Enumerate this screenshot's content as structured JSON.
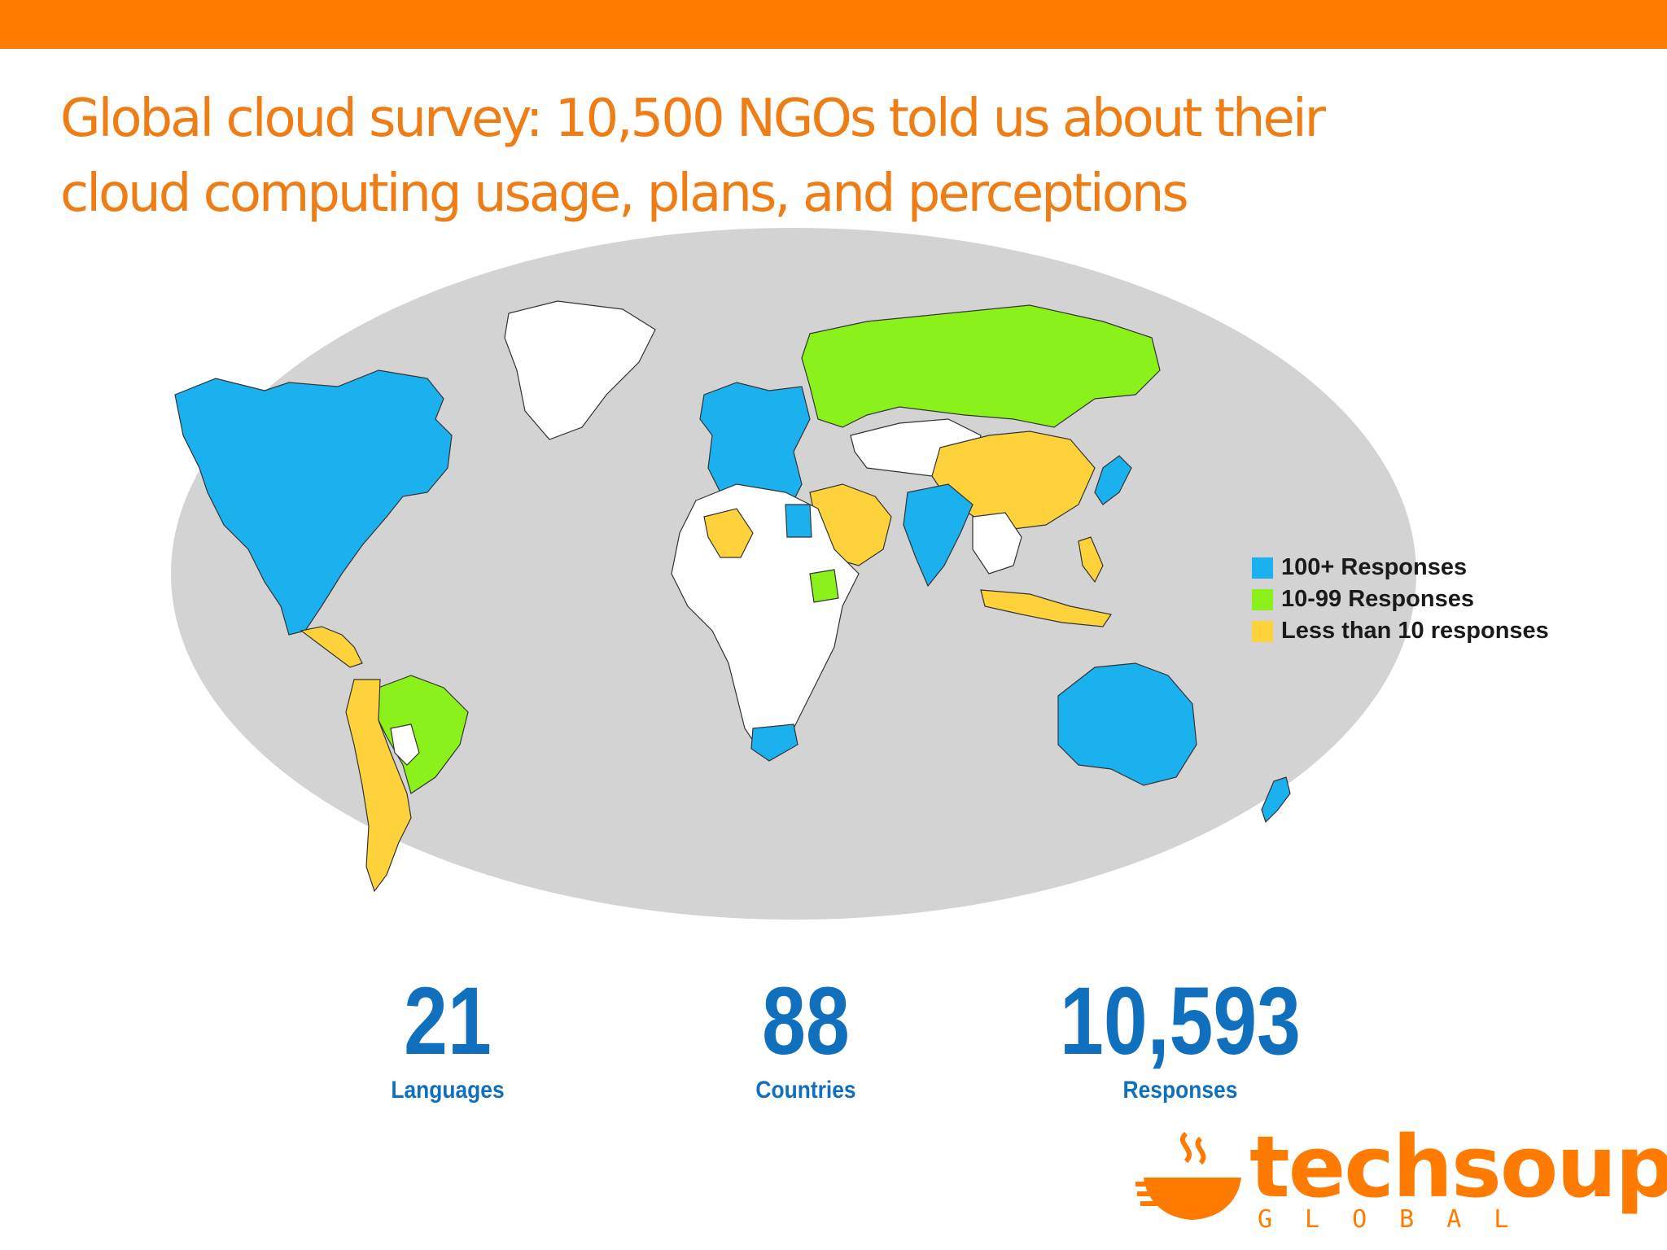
{
  "colors": {
    "accent": "#ff7b00",
    "title": "#ef7d16",
    "stat_blue": "#1170be",
    "ocean": "#d3d3d3",
    "blue": "#1ab1ee",
    "green": "#8af21a",
    "yellow": "#fdd23b",
    "white": "#ffffff"
  },
  "title_line1": "Global cloud survey: 10,500 NGOs told us about their",
  "title_line2": "cloud computing usage, plans, and perceptions",
  "legend": [
    {
      "label": "100+ Responses",
      "color": "#1ab1ee"
    },
    {
      "label": "10-99 Responses",
      "color": "#8af21a"
    },
    {
      "label": "Less than 10 responses",
      "color": "#fdd23b"
    }
  ],
  "stats": [
    {
      "value": "21",
      "label": "Languages"
    },
    {
      "value": "88",
      "label": "Countries"
    },
    {
      "value": "10,593",
      "label": "Responses"
    }
  ],
  "logo": {
    "word": "techsoup",
    "sub": "GLOBAL"
  }
}
